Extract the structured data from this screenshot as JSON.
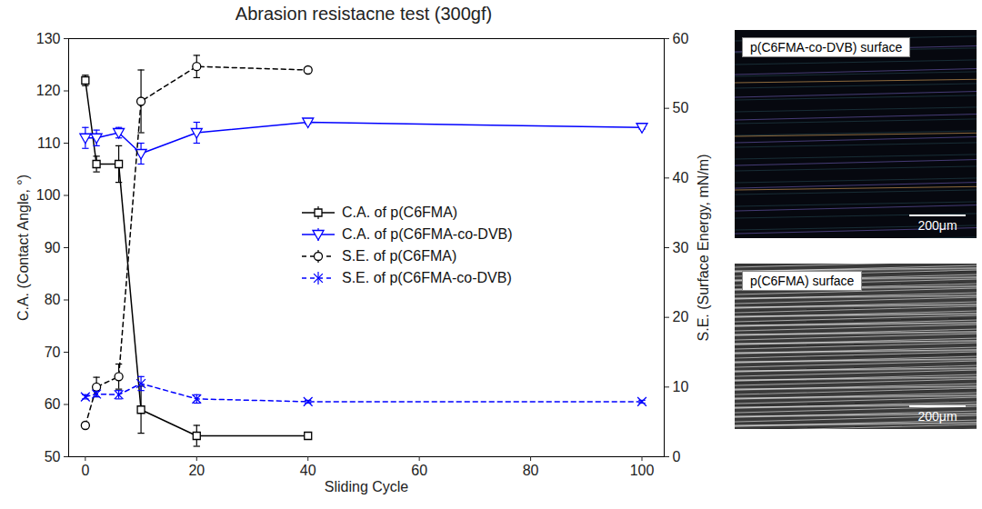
{
  "chart_data": {
    "type": "line",
    "title": "Abrasion resistacne test (300gf)",
    "xlabel": "Sliding Cycle",
    "ylabel": "C.A. (Contact Angle, °)",
    "y2label": "S.E. (Surface Energy, mN/m)",
    "xlim": [
      -3,
      104
    ],
    "xticks": [
      0,
      20,
      40,
      60,
      80,
      100
    ],
    "ylim": [
      50,
      130
    ],
    "yticks": [
      50,
      60,
      70,
      80,
      90,
      100,
      110,
      120,
      130
    ],
    "y2lim": [
      0,
      60
    ],
    "y2ticks": [
      0,
      10,
      20,
      30,
      40,
      50,
      60
    ],
    "legend": "center",
    "series": [
      {
        "name": "C.A. of p(C6FMA)",
        "color": "#000000",
        "marker": "square",
        "line_style": "solid",
        "axis": "y",
        "x": [
          0,
          2,
          6,
          10,
          20,
          40
        ],
        "values": [
          122,
          106,
          106,
          59,
          54,
          54
        ],
        "errors": [
          1,
          1.5,
          3.5,
          4.5,
          2,
          0.4
        ]
      },
      {
        "name": "C.A. of p(C6FMA-co-DVB)",
        "color": "#0000ff",
        "marker": "triangle-down",
        "line_style": "solid",
        "axis": "y",
        "x": [
          0,
          2,
          6,
          10,
          20,
          40,
          100
        ],
        "values": [
          111,
          111,
          112,
          108,
          112,
          114,
          113
        ],
        "errors": [
          2,
          1.5,
          1,
          2,
          2,
          0.3,
          0.3
        ]
      },
      {
        "name": "S.E. of p(C6FMA)",
        "color": "#000000",
        "marker": "circle",
        "line_style": "dashed",
        "axis": "y2",
        "x": [
          0,
          2,
          6,
          10,
          20,
          40
        ],
        "values": [
          4.5,
          10,
          11.5,
          51,
          56,
          55.5
        ],
        "errors": [
          0.3,
          1.4,
          1.8,
          4.5,
          1.6,
          0.3
        ]
      },
      {
        "name": "S.E. of p(C6FMA-co-DVB)",
        "color": "#0000ff",
        "marker": "x",
        "line_style": "dashed",
        "axis": "y2",
        "x": [
          0,
          2,
          6,
          10,
          20,
          40,
          100
        ],
        "values": [
          8.6,
          9,
          8.9,
          10.5,
          8.3,
          7.9,
          7.9
        ],
        "errors": [
          0.3,
          0.4,
          0.6,
          1,
          0.6,
          0.2,
          0.2
        ]
      }
    ]
  },
  "panels": [
    {
      "label": "p(C6FMA-co-DVB) surface",
      "scale_bar": "200μm"
    },
    {
      "label": "p(C6FMA) surface",
      "scale_bar": "200μm"
    }
  ]
}
